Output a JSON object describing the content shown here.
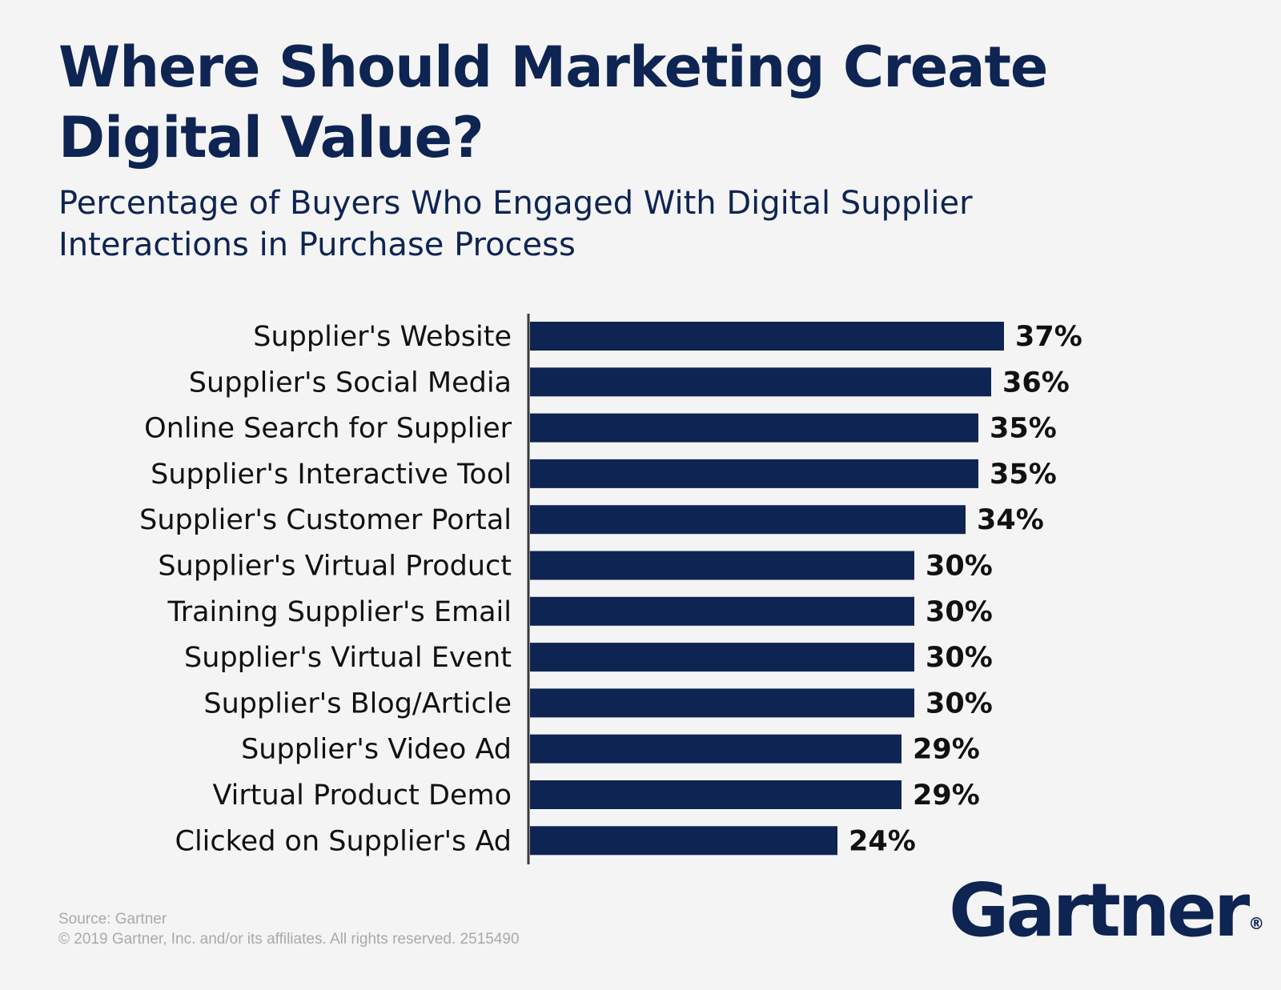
{
  "chart_data": {
    "type": "bar",
    "orientation": "horizontal",
    "title": "Where Should Marketing Create Digital Value?",
    "subtitle": "Percentage of Buyers Who Engaged With Digital Supplier Interactions in Purchase Process",
    "categories": [
      "Supplier's Website",
      "Supplier's Social Media",
      "Online Search for Supplier",
      "Supplier's Interactive Tool",
      "Supplier's Customer Portal",
      "Supplier's Virtual Product",
      "Training Supplier's Email",
      "Supplier's Virtual Event",
      "Supplier's Blog/Article",
      "Supplier's Video Ad",
      "Virtual Product Demo",
      "Clicked on Supplier's Ad"
    ],
    "values": [
      37,
      36,
      35,
      35,
      34,
      30,
      30,
      30,
      30,
      29,
      29,
      24
    ],
    "value_labels": [
      "37%",
      "36%",
      "35%",
      "35%",
      "34%",
      "30%",
      "30%",
      "30%",
      "30%",
      "29%",
      "29%",
      "24%"
    ],
    "xlim": [
      0,
      40
    ],
    "grid": false,
    "legend": "none",
    "bar_color": "#0e2452"
  },
  "footer": {
    "source": "Source: Gartner",
    "copyright": "© 2019 Gartner, Inc. and/or its affiliates. All rights reserved. 2515490"
  },
  "logo": {
    "text": "Gartner",
    "mark": "®"
  },
  "colors": {
    "background": "#f4f4f4",
    "navy": "#0e2452",
    "text": "#111111",
    "muted": "#a9a9a9"
  }
}
